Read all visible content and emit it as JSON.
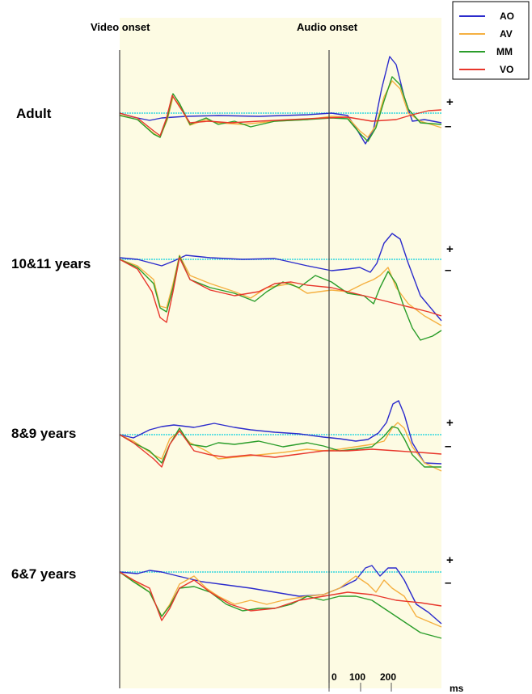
{
  "chart_data": {
    "type": "line",
    "title": "",
    "xlabel": "ms",
    "ylabel": "",
    "annotations": [
      "Video onset",
      "Audio onset"
    ],
    "x_ticks": [
      "0",
      "100",
      "200"
    ],
    "polarity": {
      "plus": "+",
      "minus": "–"
    },
    "legend": {
      "position": "top-right",
      "entries": [
        "AO",
        "AV",
        "MM",
        "VO"
      ]
    },
    "colors": {
      "AO": "#2b2bcc",
      "AV": "#f5b041",
      "MM": "#2a9d2a",
      "VO": "#e8362b",
      "baseline": "#66e0e0",
      "panel": "#fdfbe3"
    },
    "panels": [
      {
        "label": "Adult"
      },
      {
        "label": "10&11 years"
      },
      {
        "label": "8&9 years"
      },
      {
        "label": "6&7 years"
      }
    ]
  }
}
